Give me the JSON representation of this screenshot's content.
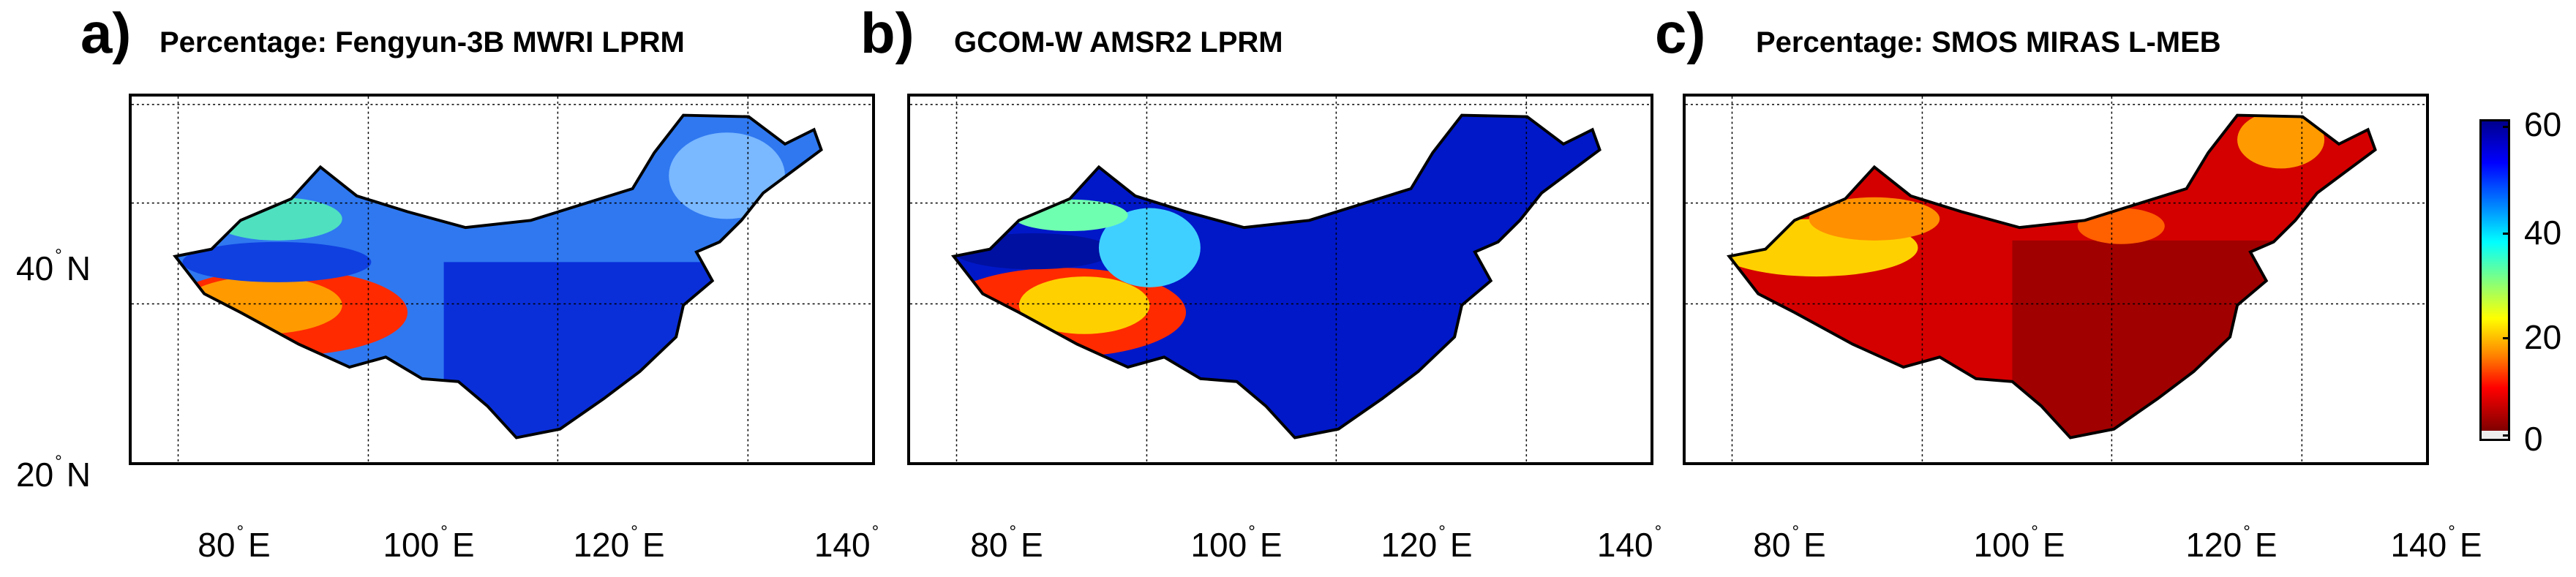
{
  "panels": [
    {
      "letter": "a)",
      "title": "Percentage: Fengyun-3B MWRI LPRM"
    },
    {
      "letter": "b)",
      "title": "GCOM-W AMSR2 LPRM"
    },
    {
      "letter": "c)",
      "title": "Percentage: SMOS MIRAS L-MEB"
    }
  ],
  "latitude_labels": [
    "40",
    "20"
  ],
  "latitude_suffix": "N",
  "longitude_labels": {
    "panel_a": [
      "80",
      "100",
      "120",
      "140"
    ],
    "panel_b": [
      "80",
      "100",
      "120",
      "140"
    ],
    "panel_c": [
      "80",
      "100",
      "120",
      "140"
    ]
  },
  "longitude_suffix": "E",
  "colorbar": {
    "ticks": [
      "60",
      "40",
      "20",
      "0"
    ],
    "range": [
      0,
      60
    ],
    "colormap": "jet",
    "low_color": "#7f0000",
    "high_color": "#00008f"
  },
  "colors": {
    "panel_a_dominant": "#0a2fd9",
    "panel_b_dominant": "#0018c8",
    "panel_c_dominant": "#b00000",
    "land_outline": "#000000"
  }
}
